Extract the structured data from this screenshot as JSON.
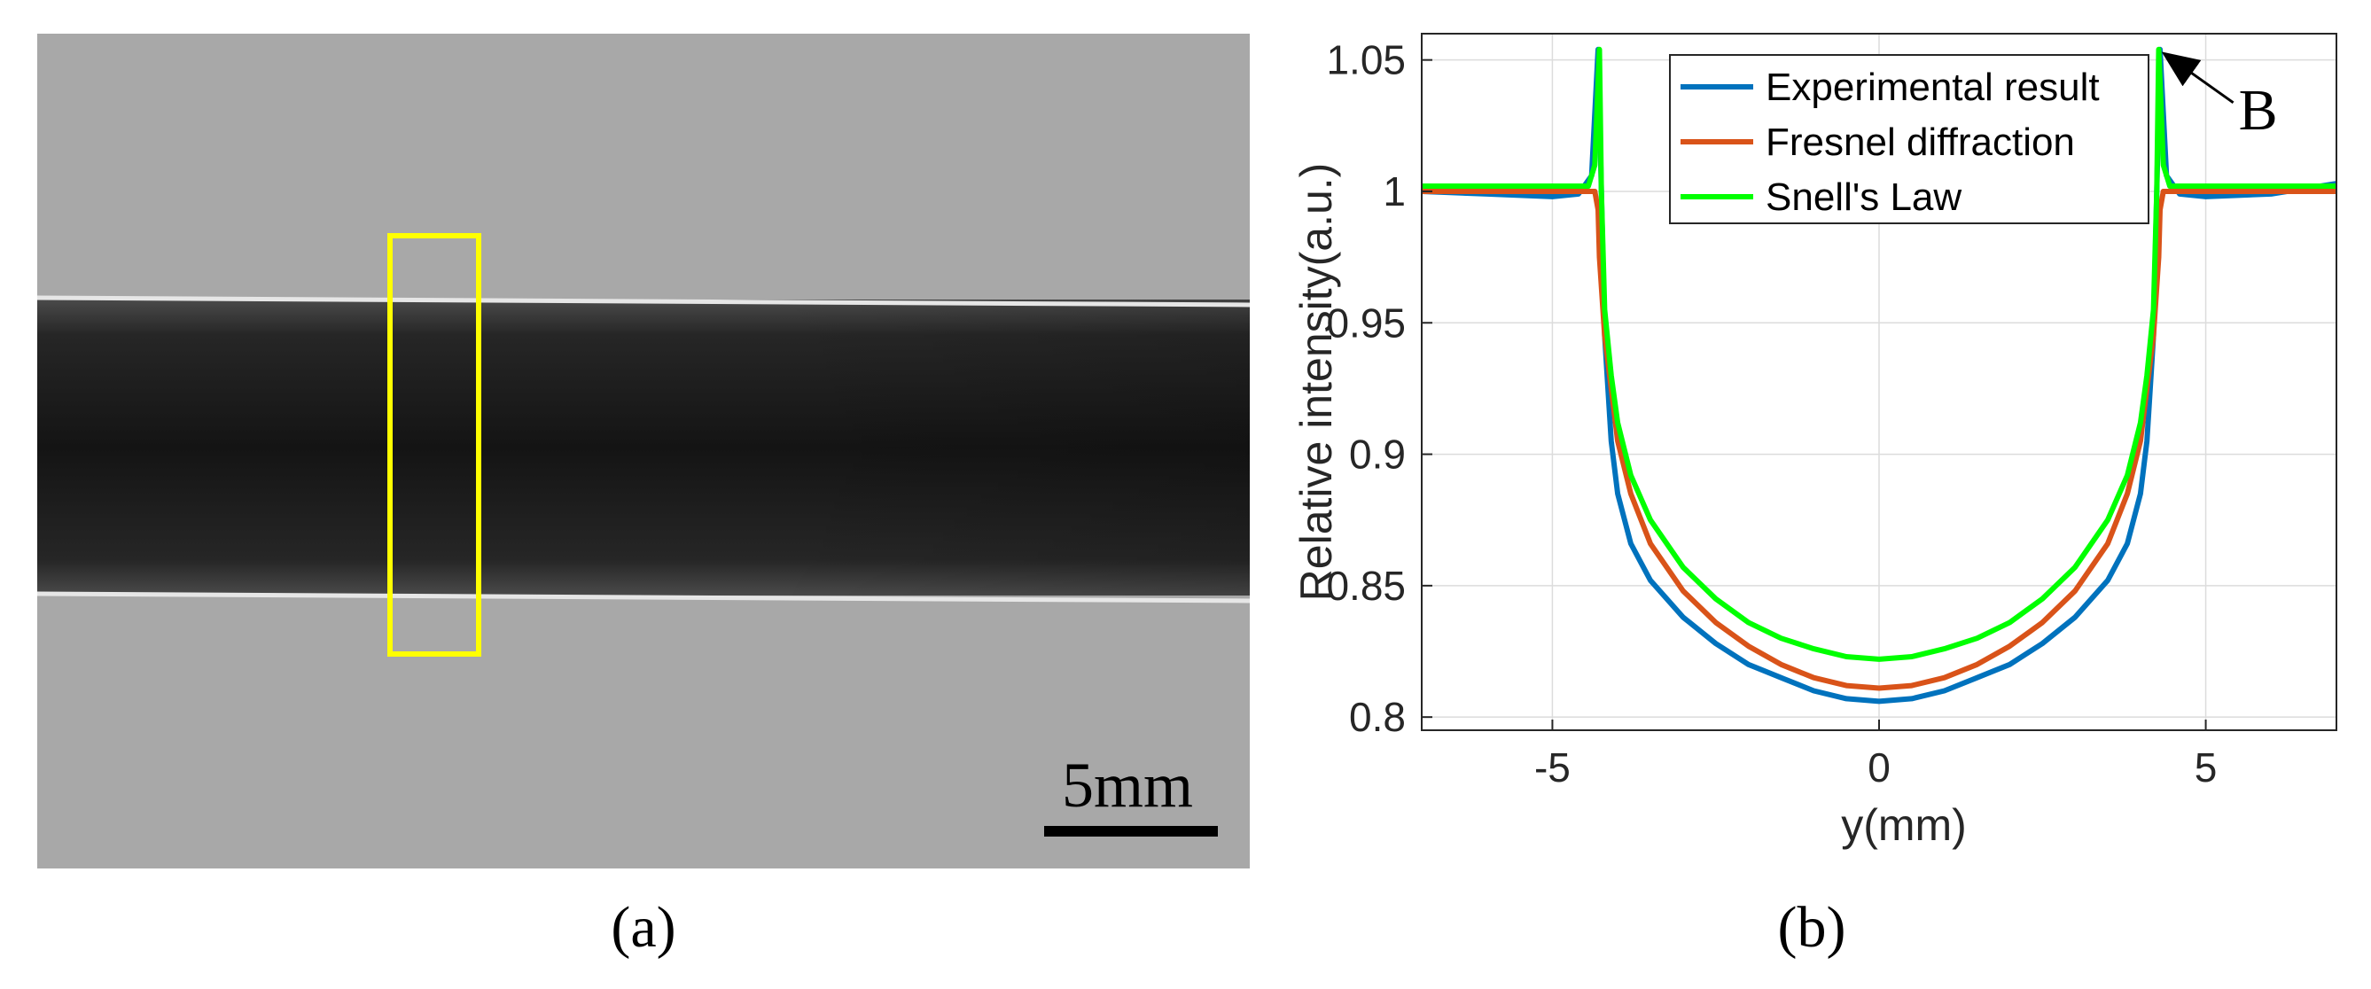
{
  "panel_a": {
    "label": "(a)",
    "scale_bar_text": "5mm",
    "colors": {
      "background": "#a8a8a8",
      "band": "#141414",
      "edge_highlight": "#e6e6e6",
      "roi_box": "#ffff00"
    }
  },
  "panel_b": {
    "label": "(b)"
  },
  "chart_data": {
    "type": "line",
    "xlabel": "y(mm)",
    "ylabel": "Relative intensity(a.u.)",
    "xlim": [
      -7,
      7
    ],
    "ylim": [
      0.795,
      1.06
    ],
    "xticks": [
      -5,
      0,
      5
    ],
    "xtick_labels": [
      "-5",
      "0",
      "5"
    ],
    "yticks": [
      0.8,
      0.85,
      0.9,
      0.95,
      1,
      1.05
    ],
    "ytick_labels": [
      "0.8",
      "0.85",
      "0.9",
      "0.95",
      "1",
      "1.05"
    ],
    "grid": true,
    "legend_position": "top-center",
    "annotation": {
      "text": "B",
      "points_to": [
        4.2,
        1.054
      ]
    },
    "series": [
      {
        "name": "Experimental result",
        "color": "#0072BD",
        "x": [
          -7,
          -6,
          -5,
          -4.6,
          -4.4,
          -4.3,
          -4.25,
          -4.2,
          -4.1,
          -4.0,
          -3.8,
          -3.5,
          -3.0,
          -2.5,
          -2.0,
          -1.5,
          -1.0,
          -0.5,
          0,
          0.5,
          1.0,
          1.5,
          2.0,
          2.5,
          3.0,
          3.5,
          3.8,
          4.0,
          4.1,
          4.2,
          4.25,
          4.3,
          4.4,
          4.6,
          5,
          6,
          7
        ],
        "y": [
          1.0,
          0.999,
          0.998,
          0.999,
          1.006,
          1.054,
          1.0,
          0.945,
          0.905,
          0.885,
          0.866,
          0.852,
          0.838,
          0.828,
          0.82,
          0.815,
          0.81,
          0.807,
          0.806,
          0.807,
          0.81,
          0.815,
          0.82,
          0.828,
          0.838,
          0.852,
          0.866,
          0.885,
          0.905,
          0.945,
          1.0,
          1.054,
          1.006,
          0.999,
          0.998,
          0.999,
          1.003
        ]
      },
      {
        "name": "Fresnel diffraction",
        "color": "#D95319",
        "x": [
          -7,
          -4.35,
          -4.3,
          -4.28,
          -4.2,
          -4.1,
          -4.0,
          -3.8,
          -3.5,
          -3.0,
          -2.5,
          -2.0,
          -1.5,
          -1.0,
          -0.5,
          0,
          0.5,
          1.0,
          1.5,
          2.0,
          2.5,
          3.0,
          3.5,
          3.8,
          4.0,
          4.1,
          4.2,
          4.28,
          4.3,
          4.35,
          7
        ],
        "y": [
          1.0,
          1.0,
          0.993,
          0.975,
          0.945,
          0.925,
          0.905,
          0.885,
          0.866,
          0.848,
          0.836,
          0.827,
          0.82,
          0.815,
          0.812,
          0.811,
          0.812,
          0.815,
          0.82,
          0.827,
          0.836,
          0.848,
          0.866,
          0.885,
          0.905,
          0.925,
          0.945,
          0.975,
          0.993,
          1.0,
          1.0
        ]
      },
      {
        "name": "Snell's Law",
        "color": "#00FF00",
        "x": [
          -7,
          -4.45,
          -4.35,
          -4.28,
          -4.25,
          -4.2,
          -4.1,
          -4.0,
          -3.8,
          -3.5,
          -3.0,
          -2.5,
          -2.0,
          -1.5,
          -1.0,
          -0.5,
          0,
          0.5,
          1.0,
          1.5,
          2.0,
          2.5,
          3.0,
          3.5,
          3.8,
          4.0,
          4.1,
          4.2,
          4.25,
          4.28,
          4.35,
          4.45,
          7
        ],
        "y": [
          1.002,
          1.002,
          1.01,
          1.054,
          1.0,
          0.955,
          0.93,
          0.912,
          0.892,
          0.875,
          0.857,
          0.845,
          0.836,
          0.83,
          0.826,
          0.823,
          0.822,
          0.823,
          0.826,
          0.83,
          0.836,
          0.845,
          0.857,
          0.875,
          0.892,
          0.912,
          0.93,
          0.955,
          1.0,
          1.054,
          1.01,
          1.002,
          1.002
        ]
      }
    ]
  }
}
